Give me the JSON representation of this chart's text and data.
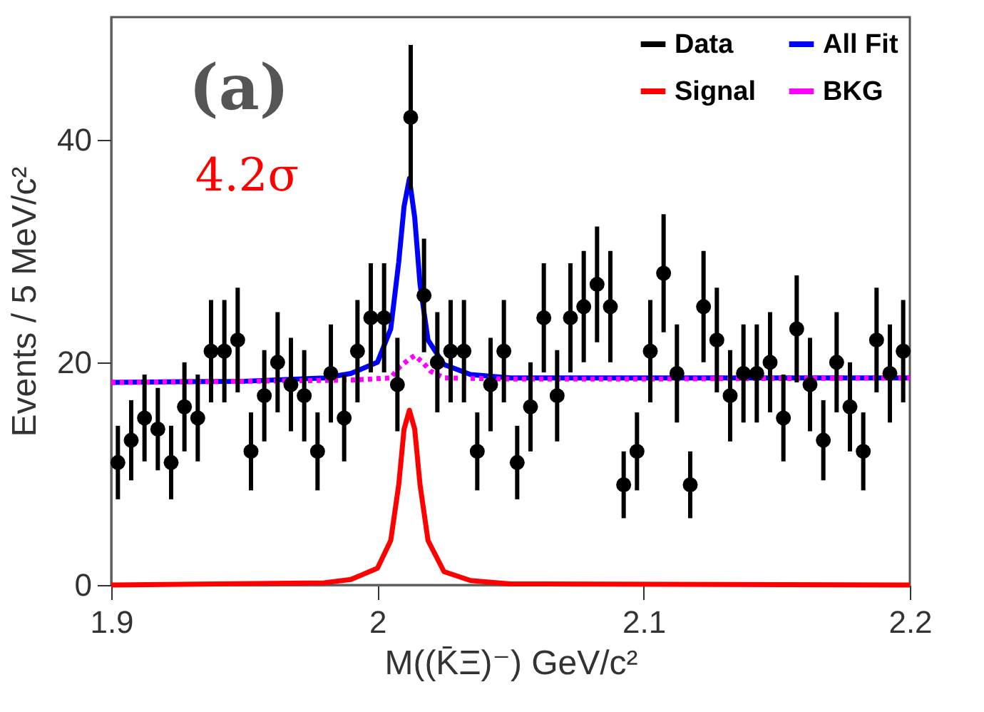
{
  "chart_data": {
    "type": "scatter",
    "xlabel": "M((K̄Ξ)⁻) GeV/c²",
    "ylabel": "Events / 5 MeV/c²",
    "annotations": [
      "(a)",
      "4.2σ"
    ],
    "xlim": [
      1.9,
      2.2
    ],
    "xticks": [
      1.9,
      2,
      2.1,
      2.2
    ],
    "ylim": [
      0,
      51
    ],
    "yticks": [
      0,
      20,
      40
    ],
    "legend": "top right",
    "grid": false,
    "series": [
      {
        "name": "Data",
        "type": "scatter",
        "marker": "circle",
        "color": "#000000",
        "x": [
          1.9025,
          1.9075,
          1.9125,
          1.9175,
          1.9225,
          1.9275,
          1.9325,
          1.9375,
          1.9425,
          1.9475,
          1.9525,
          1.9575,
          1.9625,
          1.9675,
          1.9725,
          1.9775,
          1.9825,
          1.9875,
          1.9925,
          1.9975,
          2.0025,
          2.0075,
          2.0125,
          2.0175,
          2.0225,
          2.0275,
          2.0325,
          2.0375,
          2.0425,
          2.0475,
          2.0525,
          2.0575,
          2.0625,
          2.0675,
          2.0725,
          2.0775,
          2.0825,
          2.0875,
          2.0925,
          2.0975,
          2.1025,
          2.1075,
          2.1125,
          2.1175,
          2.1225,
          2.1275,
          2.1325,
          2.1375,
          2.1425,
          2.1475,
          2.1525,
          2.1575,
          2.1625,
          2.1675,
          2.1725,
          2.1775,
          2.1825,
          2.1875,
          2.1925,
          2.1975
        ],
        "values": [
          11,
          13,
          15,
          14,
          11,
          16,
          15,
          21,
          21,
          22,
          12,
          17,
          20,
          18,
          17,
          12,
          19,
          15,
          21,
          24,
          24,
          18,
          42,
          26,
          20,
          21,
          21,
          12,
          18,
          21,
          11,
          16,
          24,
          17,
          24,
          25,
          27,
          25,
          9,
          12,
          21,
          28,
          19,
          9,
          25,
          22,
          17,
          19,
          19,
          20,
          15,
          23,
          18,
          13,
          20,
          16,
          12,
          22,
          19,
          21
        ],
        "errors": [
          3.3,
          3.6,
          3.9,
          3.7,
          3.3,
          4,
          3.9,
          4.6,
          4.6,
          4.7,
          3.5,
          4.1,
          4.5,
          4.2,
          4.1,
          3.5,
          4.4,
          3.9,
          4.6,
          4.9,
          4.9,
          4.2,
          6.5,
          5.1,
          4.5,
          4.6,
          4.6,
          3.5,
          4.2,
          4.6,
          3.3,
          4,
          4.9,
          4.1,
          4.9,
          5,
          5.2,
          5,
          3,
          3.5,
          4.6,
          5.3,
          4.4,
          3,
          5,
          4.7,
          4.1,
          4.4,
          4.4,
          4.5,
          3.9,
          4.8,
          4.2,
          3.6,
          4.5,
          4,
          3.5,
          4.7,
          4.4,
          4.6
        ]
      },
      {
        "name": "Signal",
        "type": "line",
        "line_style": "solid",
        "color": "#ff0000",
        "x": [
          1.9,
          1.98,
          1.99,
          2.0,
          2.005,
          2.008,
          2.01,
          2.012,
          2.014,
          2.016,
          2.019,
          2.025,
          2.035,
          2.05,
          2.2
        ],
        "values": [
          0,
          0.2,
          0.5,
          1.5,
          4,
          9,
          14,
          15.7,
          14,
          9,
          4,
          1.2,
          0.4,
          0.1,
          0
        ]
      },
      {
        "name": "All Fit",
        "type": "line",
        "line_style": "solid",
        "color": "#0000ff",
        "x": [
          1.9,
          1.95,
          1.98,
          1.99,
          2.0,
          2.005,
          2.008,
          2.01,
          2.012,
          2.014,
          2.016,
          2.019,
          2.025,
          2.035,
          2.05,
          2.2
        ],
        "values": [
          18.2,
          18.3,
          18.6,
          19,
          20,
          23,
          29,
          34,
          36.5,
          33,
          27,
          22,
          19.8,
          18.9,
          18.6,
          18.6
        ]
      },
      {
        "name": "BKG",
        "type": "line",
        "line_style": "dotted",
        "color": "#ff00ff",
        "x": [
          1.9,
          1.95,
          1.99,
          2.005,
          2.008,
          2.012,
          2.014,
          2.017,
          2.02,
          2.025,
          2.05,
          2.1,
          2.2
        ],
        "values": [
          18.2,
          18.3,
          18.4,
          18.6,
          19.5,
          20.3,
          20.6,
          20,
          19.2,
          18.6,
          18.5,
          18.5,
          18.6
        ]
      }
    ]
  }
}
